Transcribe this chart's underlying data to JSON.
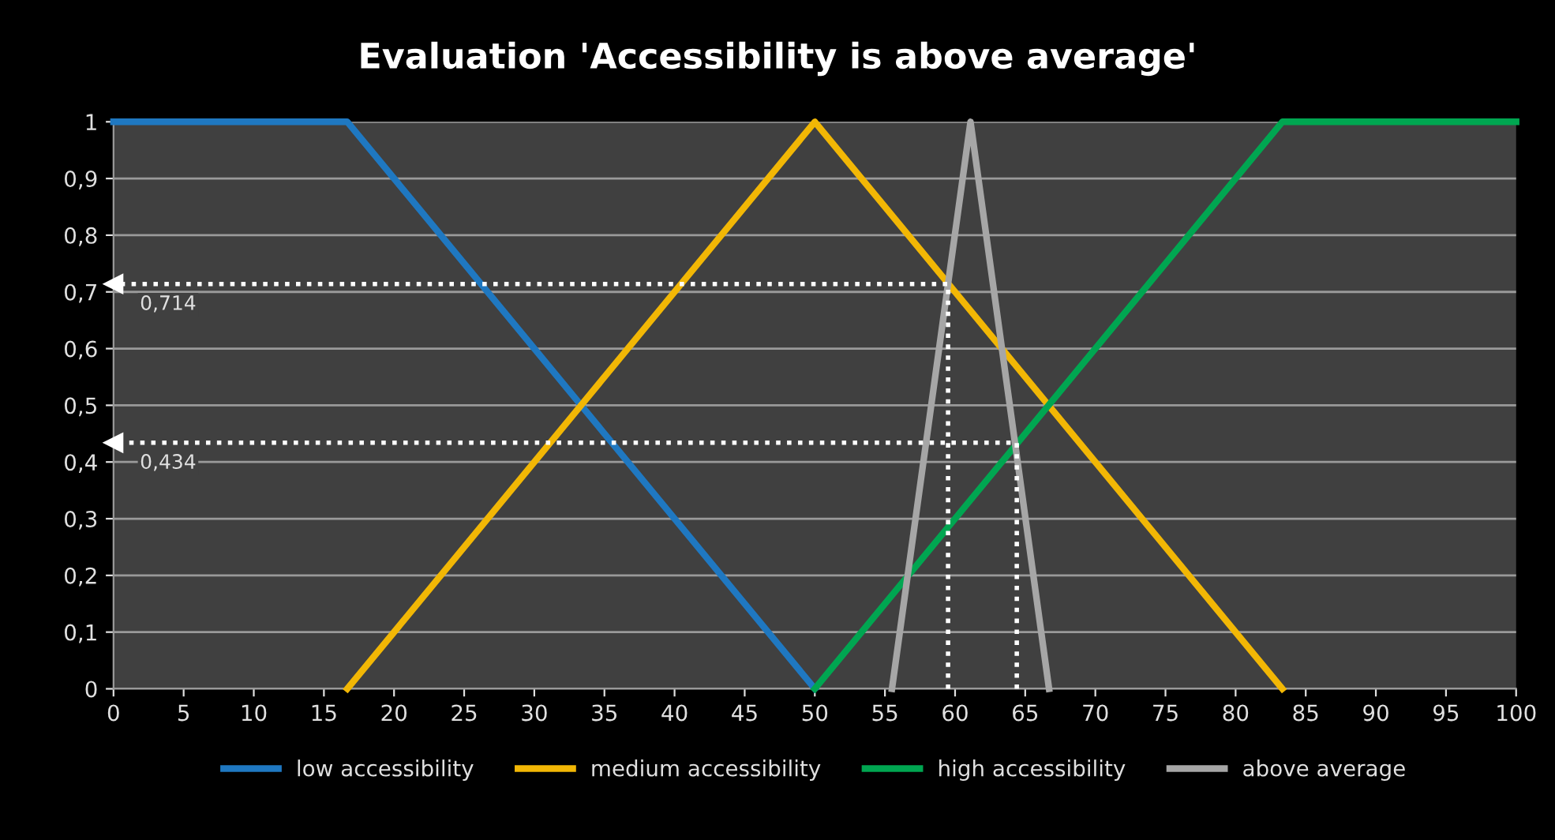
{
  "chart_data": {
    "type": "line",
    "title": "Evaluation 'Accessibility is above average'",
    "series": [
      {
        "name": "low accessibility",
        "color": "#1f78c1",
        "x": [
          0,
          16.67,
          50
        ],
        "values": [
          1,
          1,
          0
        ]
      },
      {
        "name": "medium accessibility",
        "color": "#f2b705",
        "x": [
          16.67,
          50,
          83.33
        ],
        "values": [
          0,
          1,
          0
        ]
      },
      {
        "name": "high accessibility",
        "color": "#00a651",
        "x": [
          50,
          83.33,
          100
        ],
        "values": [
          0,
          1,
          1
        ]
      },
      {
        "name": "above average",
        "color": "#a6a6a6",
        "x": [
          55.5,
          61.1,
          66.7
        ],
        "values": [
          0,
          1,
          0
        ]
      },
      {
        "color": "#ffffff",
        "line_style": "dotted",
        "x": [
          59.5,
          59.5,
          0
        ],
        "values": [
          0,
          0.714,
          0.714
        ]
      },
      {
        "color": "#ffffff",
        "line_style": "dotted",
        "x": [
          64.4,
          64.4,
          0
        ],
        "values": [
          0,
          0.434,
          0.434
        ]
      }
    ],
    "annotations": [
      {
        "text": "0,714",
        "x": 0,
        "y": 0.714
      },
      {
        "text": "0,434",
        "x": 0,
        "y": 0.434
      }
    ],
    "xlim": [
      0,
      100
    ],
    "xticks": [
      0,
      5,
      10,
      15,
      20,
      25,
      30,
      35,
      40,
      45,
      50,
      55,
      60,
      65,
      70,
      75,
      80,
      85,
      90,
      95,
      100
    ],
    "ylim": [
      0,
      1
    ],
    "yticks": [
      0,
      {
        "value": 0.1,
        "label": "0,1"
      },
      {
        "value": 0.2,
        "label": "0,2"
      },
      {
        "value": 0.3,
        "label": "0,3"
      },
      {
        "value": 0.4,
        "label": "0,4"
      },
      {
        "value": 0.5,
        "label": "0,5"
      },
      {
        "value": 0.6,
        "label": "0,6"
      },
      {
        "value": 0.7,
        "label": "0,7"
      },
      {
        "value": 0.8,
        "label": "0,8"
      },
      {
        "value": 0.9,
        "label": "0,9"
      },
      1
    ],
    "grid": "y",
    "legend": "bottom",
    "marker": "none",
    "line_style": "solid"
  }
}
